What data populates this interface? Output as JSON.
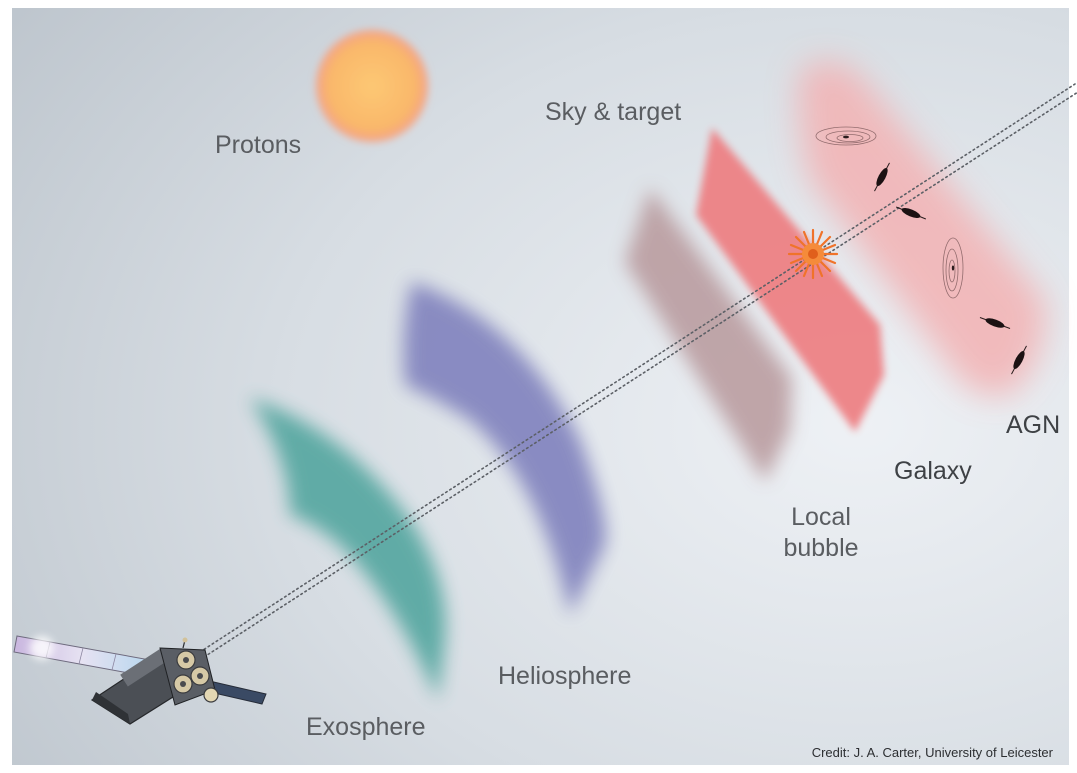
{
  "labels": {
    "protons": "Protons",
    "sky_target": "Sky & target",
    "agn": "AGN",
    "galaxy": "Galaxy",
    "local_bubble_line1": "Local",
    "local_bubble_line2": "bubble",
    "heliosphere": "Heliosphere",
    "exosphere": "Exosphere"
  },
  "credit": "Credit: J. A. Carter, University of Leicester",
  "icons": {
    "sun": "sun-icon",
    "satellite": "satellite-icon",
    "target_source": "starburst-icon",
    "galaxy": "galaxy-icon"
  },
  "colors": {
    "background_light": "#e8ecf1",
    "background_dark": "#bcc4cc",
    "sun": "#f9b76a",
    "exosphere": "#5aa9a3",
    "heliosphere": "#8587c0",
    "local_bubble": "#b8999c",
    "galaxy_layer": "#ee7b7f",
    "agn_layer": "#f3b2b4",
    "target_burst": "#f0732a",
    "line_of_sight": "#5c6066"
  }
}
